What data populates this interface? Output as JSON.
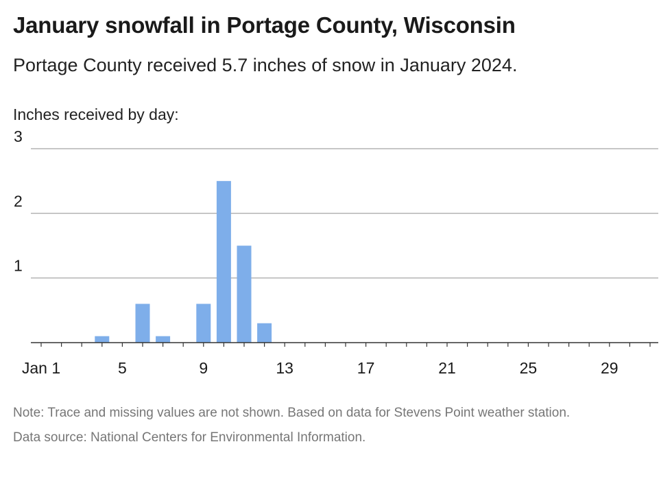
{
  "header": {
    "title": "January snowfall in Portage County, Wisconsin",
    "subtitle": "Portage County received 5.7 inches of snow in January 2024."
  },
  "chart_data": {
    "type": "bar",
    "ylabel": "Inches received by day:",
    "x": [
      1,
      2,
      3,
      4,
      5,
      6,
      7,
      8,
      9,
      10,
      11,
      12,
      13,
      14,
      15,
      16,
      17,
      18,
      19,
      20,
      21,
      22,
      23,
      24,
      25,
      26,
      27,
      28,
      29,
      30,
      31
    ],
    "values": [
      0,
      0,
      0,
      0.1,
      0,
      0.6,
      0.1,
      0,
      0.6,
      2.5,
      1.5,
      0.3,
      0,
      0,
      0,
      0,
      0,
      0,
      0,
      0,
      0,
      0,
      0,
      0,
      0,
      0,
      0,
      0,
      0,
      0,
      0
    ],
    "ylim": [
      0,
      3
    ],
    "yticks": [
      1,
      2,
      3
    ],
    "xticks": [
      {
        "value": 1,
        "label": "Jan 1"
      },
      {
        "value": 5,
        "label": "5"
      },
      {
        "value": 9,
        "label": "9"
      },
      {
        "value": 13,
        "label": "13"
      },
      {
        "value": 17,
        "label": "17"
      },
      {
        "value": 21,
        "label": "21"
      },
      {
        "value": 25,
        "label": "25"
      },
      {
        "value": 29,
        "label": "29"
      }
    ],
    "grid": true,
    "bar_color": "#7eaeea",
    "grid_color": "#b3b3b3"
  },
  "footer": {
    "note": "Note: Trace and missing values are not shown. Based on data for Stevens Point weather station.",
    "source": "Data source: National Centers for Environmental Information."
  }
}
